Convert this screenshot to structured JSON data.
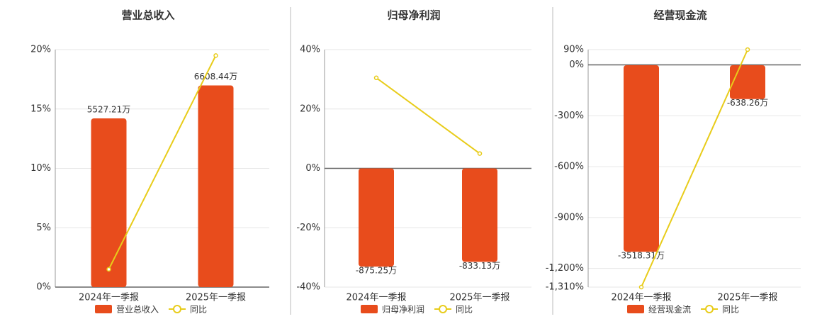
{
  "chart_data": [
    {
      "type": "bar",
      "title": "营业总收入",
      "categories": [
        "2024年一季报",
        "2025年一季报"
      ],
      "series": [
        {
          "name": "营业总收入",
          "type": "bar",
          "axis": "y2",
          "color": "#e84c1c",
          "values": [
            5527.21,
            6608.44
          ],
          "value_labels": [
            "5527.21万",
            "6608.44万"
          ]
        },
        {
          "name": "同比",
          "type": "line",
          "color": "#e8cc1a",
          "values": [
            1.5,
            19.5
          ]
        }
      ],
      "ylim": [
        0,
        20
      ],
      "yticks": [
        {
          "value": 0,
          "label": "0%"
        },
        {
          "value": 5,
          "label": "5%"
        },
        {
          "value": 10,
          "label": "10%"
        },
        {
          "value": 15,
          "label": "15%"
        },
        {
          "value": 20,
          "label": "20%"
        }
      ],
      "y2lim": [
        0,
        7780
      ],
      "grid": true
    },
    {
      "type": "bar",
      "title": "归母净利润",
      "categories": [
        "2024年一季报",
        "2025年一季报"
      ],
      "series": [
        {
          "name": "归母净利润",
          "type": "bar",
          "axis": "y2",
          "color": "#e84c1c",
          "values": [
            -875.25,
            -833.13
          ],
          "value_labels": [
            "-875.25万",
            "-833.13万"
          ]
        },
        {
          "name": "同比",
          "type": "line",
          "color": "#e8cc1a",
          "values": [
            30.5,
            5
          ]
        }
      ],
      "ylim": [
        -40,
        40
      ],
      "yticks": [
        {
          "value": -40,
          "label": "-40%"
        },
        {
          "value": -20,
          "label": "-20%"
        },
        {
          "value": 0,
          "label": "0%"
        },
        {
          "value": 20,
          "label": "20%"
        },
        {
          "value": 40,
          "label": "40%"
        }
      ],
      "y2lim": [
        -1058,
        1058
      ],
      "grid": true
    },
    {
      "type": "bar",
      "title": "经营现金流",
      "categories": [
        "2024年一季报",
        "2025年一季报"
      ],
      "series": [
        {
          "name": "经营现金流",
          "type": "bar",
          "axis": "y2",
          "color": "#e84c1c",
          "values": [
            -3518.31,
            -638.26
          ],
          "value_labels": [
            "-3518.31万",
            "-638.26万"
          ]
        },
        {
          "name": "同比",
          "type": "line",
          "color": "#e8cc1a",
          "values": [
            -1310,
            90
          ]
        }
      ],
      "ylim": [
        -1310,
        90
      ],
      "yticks": [
        {
          "value": -1310,
          "label": "-1,310%"
        },
        {
          "value": -1200,
          "label": "-1,200%"
        },
        {
          "value": -900,
          "label": "-900%"
        },
        {
          "value": -600,
          "label": "-600%"
        },
        {
          "value": -300,
          "label": "-300%"
        },
        {
          "value": 0,
          "label": "0%"
        },
        {
          "value": 90,
          "label": "90%"
        }
      ],
      "y2lim": [
        -4186,
        294
      ],
      "grid": true
    }
  ]
}
